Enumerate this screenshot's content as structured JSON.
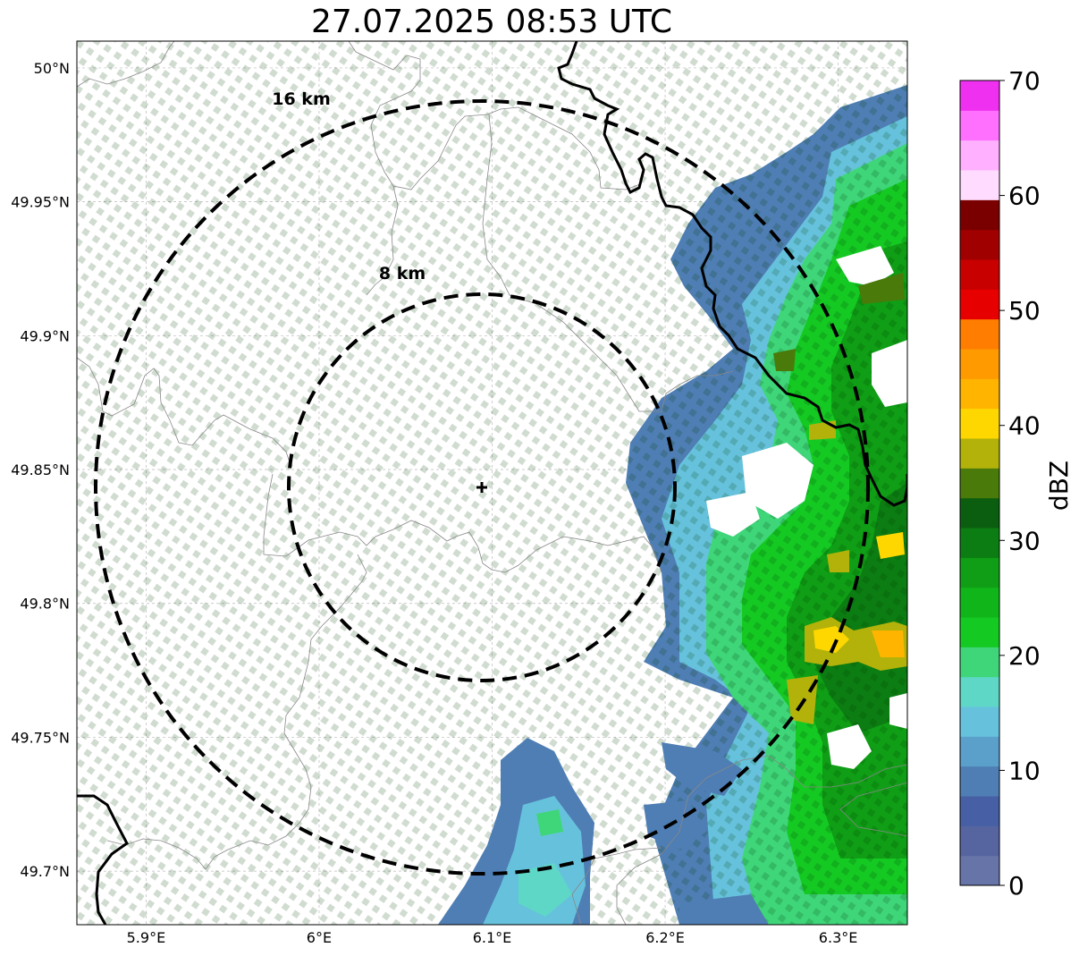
{
  "title": "27.07.2025 08:53 UTC",
  "map": {
    "lon_range": [
      5.86,
      6.34
    ],
    "lat_range": [
      49.68,
      50.01
    ],
    "radar_site": {
      "lon": 6.095,
      "lat": 49.8425
    },
    "rings": [
      {
        "label": "16 km",
        "radius_km": 16
      },
      {
        "label": "8 km",
        "radius_km": 8
      }
    ],
    "x_ticks": [
      {
        "value": 5.9,
        "label": "5.9°E"
      },
      {
        "value": 6.0,
        "label": "6°E"
      },
      {
        "value": 6.1,
        "label": "6.1°E"
      },
      {
        "value": 6.2,
        "label": "6.2°E"
      },
      {
        "value": 6.3,
        "label": "6.3°E"
      }
    ],
    "y_ticks": [
      {
        "value": 50.0,
        "label": "50°N"
      },
      {
        "value": 49.95,
        "label": "49.95°N"
      },
      {
        "value": 49.9,
        "label": "49.9°N"
      },
      {
        "value": 49.85,
        "label": "49.85°N"
      },
      {
        "value": 49.8,
        "label": "49.8°N"
      },
      {
        "value": 49.75,
        "label": "49.75°N"
      },
      {
        "value": 49.7,
        "label": "49.7°N"
      }
    ],
    "gridlines": true
  },
  "colorbar": {
    "label": "dBZ",
    "min": 0,
    "max": 70,
    "step": 5,
    "tick_labels": [
      "0",
      "10",
      "20",
      "30",
      "40",
      "50",
      "60",
      "70"
    ],
    "colors": [
      "#6674a8",
      "#5665a0",
      "#4760a5",
      "#4f7eb4",
      "#5b9fcb",
      "#66c2dc",
      "#5ed7c6",
      "#3fd67a",
      "#15c923",
      "#10b519",
      "#0f9e15",
      "#0c7d12",
      "#0b5e0f",
      "#4a7a0a",
      "#b2b20a",
      "#ffd700",
      "#ffb500",
      "#ff9a00",
      "#ff7d00",
      "#e60000",
      "#c80000",
      "#a00000",
      "#7a0000",
      "#ffdcff",
      "#ffb0ff",
      "#ff70ff",
      "#f030f0"
    ]
  }
}
